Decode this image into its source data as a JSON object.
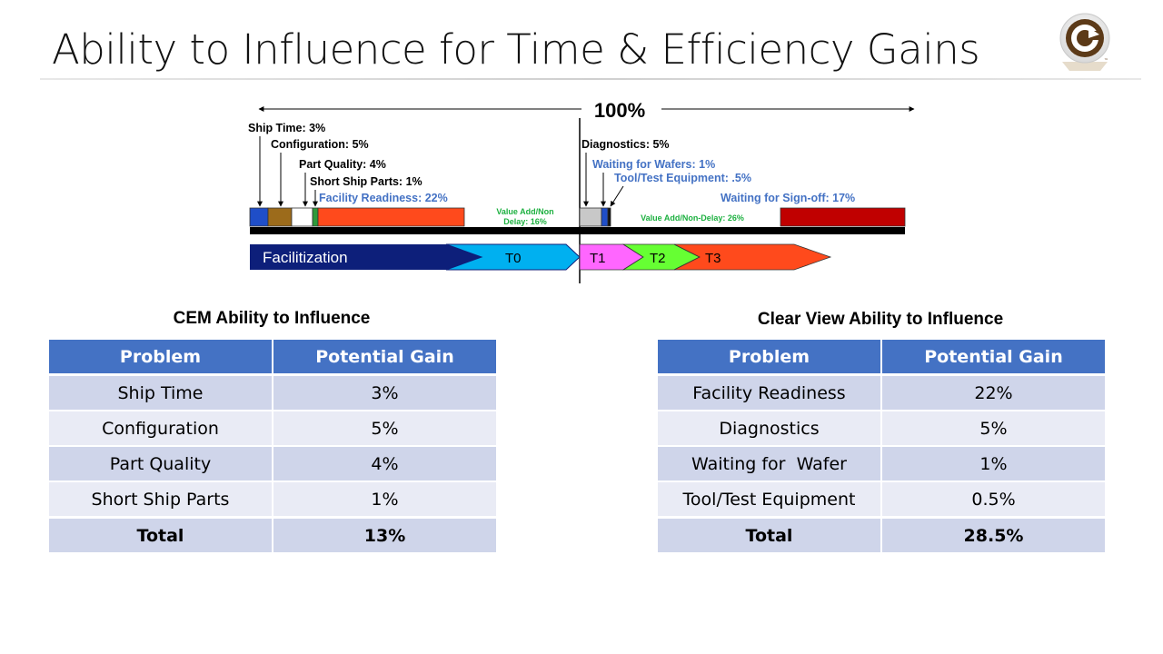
{
  "slide_title": "Ability to Influence for Time & Efficiency Gains",
  "diagram": {
    "total_label": "100%",
    "left_labels": [
      "Ship Time: 3%",
      "Configuration: 5%",
      "Part Quality: 4%",
      "Short Ship Parts: 1%"
    ],
    "facility_label": "Facility Readiness: 22%",
    "value_add_left": [
      "Value Add/Non",
      "Delay: 16%"
    ],
    "right_labels": {
      "diagnostics": "Diagnostics: 5%",
      "waiting_wafers": "Waiting for Wafers: 1%",
      "tool_test": "Tool/Test Equipment: .5%",
      "signoff": "Waiting for Sign-off: 17%"
    },
    "value_add_right": "Value Add/Non-Delay: 26%",
    "phases": [
      "Facilitization",
      "T0",
      "T1",
      "T2",
      "T3"
    ],
    "colors": {
      "ship_time": "#1f4ec8",
      "configuration": "#9c6b1b",
      "part_quality": "#ffffff",
      "short_ship": "#2e9a3b",
      "facility": "#ff4a1c",
      "diagnostics": "#c8c8c8",
      "waiting_wafers": "#1f4ec8",
      "signoff": "#c00000",
      "blue_label": "#4472c4",
      "green_label": "#1db040",
      "facilitization": "#0d1f7a",
      "t0": "#00b0f0",
      "t1": "#ff66ff",
      "t2": "#66ff33",
      "t3": "#ff4a1c"
    }
  },
  "cem": {
    "title": "CEM Ability to Influence",
    "headers": [
      "Problem",
      "Potential Gain"
    ],
    "rows": [
      [
        "Ship Time",
        "3%"
      ],
      [
        "Configuration",
        "5%"
      ],
      [
        "Part Quality",
        "4%"
      ],
      [
        "Short Ship Parts",
        "1%"
      ]
    ],
    "total": [
      "Total",
      "13%"
    ]
  },
  "clearview": {
    "title": "Clear View Ability to Influence",
    "headers": [
      "Problem",
      "Potential Gain"
    ],
    "rows": [
      [
        "Facility Readiness",
        "22%"
      ],
      [
        "Diagnostics",
        "5%"
      ],
      [
        "Waiting for  Wafer",
        "1%"
      ],
      [
        "Tool/Test Equipment",
        "0.5%"
      ]
    ],
    "total": [
      "Total",
      "28.5%"
    ]
  },
  "logo": {
    "icon": "clearview-logo-icon",
    "mark": "™"
  }
}
